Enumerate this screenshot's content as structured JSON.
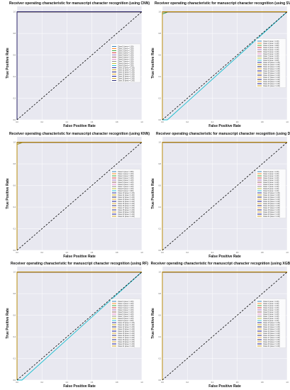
{
  "colors": {
    "plot_background": "#e8e8f0",
    "grid": "#ffffff",
    "diagonal": "#000000",
    "palette": [
      "#1f77b4",
      "#ff7f0e",
      "#2ca02c",
      "#d62728",
      "#9467bd",
      "#8c564b",
      "#e377c2",
      "#7f7f7f",
      "#bcbd22",
      "#17becf",
      "#1a1a8c",
      "#c8a000",
      "#0d0d66",
      "#e6a817",
      "#000080",
      "#daa520",
      "#191970",
      "#f0b030",
      "#101078",
      "#d4a020",
      "#00008b",
      "#cc9900"
    ]
  },
  "chart_data": [
    {
      "type": "line",
      "title": "Receiver operating characteristic for manuscript character recognition (using CNN)",
      "xlabel": "False Positive Rate",
      "ylabel": "True Positive Rate",
      "xlim": [
        0.0,
        1.0
      ],
      "ylim": [
        0.0,
        1.05
      ],
      "xticks": [
        "0.0",
        "0.2",
        "0.4",
        "0.6",
        "0.8",
        "1.0"
      ],
      "yticks": [
        "0.0",
        "0.2",
        "0.4",
        "0.6",
        "0.8",
        "1.0"
      ],
      "grid": true,
      "legend": "center-right",
      "diagonal": {
        "x": [
          0,
          1
        ],
        "y": [
          0,
          1
        ],
        "style": "dashed"
      },
      "series": [
        {
          "name": "Class 0 (area = 1.00)",
          "auc": 1.0
        },
        {
          "name": "Class 1 (area = 1.00)",
          "auc": 1.0
        },
        {
          "name": "Class 2 (area = 1.00)",
          "auc": 1.0
        },
        {
          "name": "Class 3 (area = 1.00)",
          "auc": 1.0
        },
        {
          "name": "Class 4 (area = 1.00)",
          "auc": 1.0
        },
        {
          "name": "Class 5 (area = 1.00)",
          "auc": 1.0
        },
        {
          "name": "Class 6 (area = 1.00)",
          "auc": 1.0
        },
        {
          "name": "Class 7 (area = 1.00)",
          "auc": 1.0
        },
        {
          "name": "Class 8 (area = 1.00)",
          "auc": 1.0
        },
        {
          "name": "Class 9 (area = 1.00)",
          "auc": 1.0
        },
        {
          "name": "Class 10 (area = 1.00)",
          "auc": 1.0
        },
        {
          "name": "Class 11 (area = 1.00)",
          "auc": 1.0
        },
        {
          "name": "Class 12 (area = 1.00)",
          "auc": 1.0
        },
        {
          "name": "Class 13 (area = 1.00)",
          "auc": 1.0
        },
        {
          "name": "Class 14 (area = 1.00)",
          "auc": 1.0
        },
        {
          "name": "Class 15 (area = 1.00)",
          "auc": 1.0
        },
        {
          "name": "Class 16 (area = 1.00)",
          "auc": 1.0
        }
      ]
    },
    {
      "type": "line",
      "title": "Receiver operating characteristic for manuscript character recognition (using SVM)",
      "xlabel": "False Positive Rate",
      "ylabel": "True Positive Rate",
      "xlim": [
        0.0,
        1.0
      ],
      "ylim": [
        0.0,
        1.05
      ],
      "xticks": [
        "0.0",
        "0.2",
        "0.4",
        "0.6",
        "0.8",
        "1.0"
      ],
      "yticks": [
        "0.0",
        "0.2",
        "0.4",
        "0.6",
        "0.8",
        "1.0"
      ],
      "grid": true,
      "legend": "center-right",
      "diagonal": {
        "x": [
          0,
          1
        ],
        "y": [
          0,
          1
        ],
        "style": "dashed"
      },
      "series": [
        {
          "name": "Class 0 (area = 1.00)",
          "auc": 1.0
        },
        {
          "name": "Class 1 (area = 1.00)",
          "auc": 1.0
        },
        {
          "name": "Class 2 (area = 0.99)",
          "auc": 0.99
        },
        {
          "name": "Class 3 (area = 1.00)",
          "auc": 1.0
        },
        {
          "name": "Class 4 (area = 1.00)",
          "auc": 1.0
        },
        {
          "name": "Class 5 (area = 1.00)",
          "auc": 1.0
        },
        {
          "name": "Class 6 (area = 1.00)",
          "auc": 1.0
        },
        {
          "name": "Class 7 (area = 1.00)",
          "auc": 1.0
        },
        {
          "name": "Class 8 (area = 1.00)",
          "auc": 1.0
        },
        {
          "name": "Class 9 (area = 0.48)",
          "auc": 0.48
        },
        {
          "name": "Class 10 (area = 1.00)",
          "auc": 1.0
        },
        {
          "name": "Class 11 (area = 1.00)",
          "auc": 1.0
        },
        {
          "name": "Class 12 (area = 1.00)",
          "auc": 1.0
        },
        {
          "name": "Class 13 (area = 1.00)",
          "auc": 1.0
        },
        {
          "name": "Class 14 (area = 1.00)",
          "auc": 1.0
        },
        {
          "name": "Class 15 (area = 1.00)",
          "auc": 1.0
        },
        {
          "name": "Class 16 (area = 1.00)",
          "auc": 1.0
        },
        {
          "name": "Class 17 (area = 1.00)",
          "auc": 1.0
        },
        {
          "name": "Class 18 (area = 1.00)",
          "auc": 1.0
        },
        {
          "name": "Class 19 (area = 1.00)",
          "auc": 1.0
        },
        {
          "name": "Class 20 (area = 1.00)",
          "auc": 1.0
        },
        {
          "name": "Class 21 (area = 1.00)",
          "auc": 1.0
        }
      ]
    },
    {
      "type": "line",
      "title": "Receiver operating characteristic for manuscript character recognition (using KNN)",
      "xlabel": "False Positive Rate",
      "ylabel": "True Positive Rate",
      "xlim": [
        0.0,
        1.0
      ],
      "ylim": [
        0.0,
        1.05
      ],
      "xticks": [
        "0.0",
        "0.2",
        "0.4",
        "0.6",
        "0.8",
        "1.0"
      ],
      "yticks": [
        "0.0",
        "0.2",
        "0.4",
        "0.6",
        "0.8",
        "1.0"
      ],
      "grid": true,
      "legend": "center-right",
      "diagonal": {
        "x": [
          0,
          1
        ],
        "y": [
          0,
          1
        ],
        "style": "dashed"
      },
      "series": [
        {
          "name": "Class 0 (area = 0.99)",
          "auc": 0.99
        },
        {
          "name": "Class 1 (area = 1.00)",
          "auc": 1.0
        },
        {
          "name": "Class 2 (area = 0.99)",
          "auc": 0.99
        },
        {
          "name": "Class 3 (area = 1.00)",
          "auc": 1.0
        },
        {
          "name": "Class 4 (area = 1.00)",
          "auc": 1.0
        },
        {
          "name": "Class 5 (area = 1.00)",
          "auc": 1.0
        },
        {
          "name": "Class 6 (area = 1.00)",
          "auc": 1.0
        },
        {
          "name": "Class 7 (area = 1.00)",
          "auc": 1.0
        },
        {
          "name": "Class 8 (area = 1.00)",
          "auc": 1.0
        },
        {
          "name": "Class 9 (area = 0.99)",
          "auc": 0.99
        },
        {
          "name": "Class 10 (area = 1.00)",
          "auc": 1.0
        },
        {
          "name": "Class 11 (area = 1.00)",
          "auc": 1.0
        },
        {
          "name": "Class 12 (area = 1.00)",
          "auc": 1.0
        },
        {
          "name": "Class 13 (area = 1.00)",
          "auc": 1.0
        },
        {
          "name": "Class 14 (area = 1.00)",
          "auc": 1.0
        },
        {
          "name": "Class 15 (area = 1.00)",
          "auc": 1.0
        },
        {
          "name": "Class 16 (area = 1.00)",
          "auc": 1.0
        },
        {
          "name": "Class 17 (area = 1.00)",
          "auc": 1.0
        },
        {
          "name": "Class 18 (area = 1.00)",
          "auc": 1.0
        },
        {
          "name": "Class 19 (area = 0.99)",
          "auc": 0.99
        },
        {
          "name": "Class 20 (area = 1.00)",
          "auc": 1.0
        },
        {
          "name": "Class 21 (area = 1.00)",
          "auc": 1.0
        }
      ]
    },
    {
      "type": "line",
      "title": "Receiver operating characteristic for manuscript character recognition (using DT)",
      "xlabel": "False Positive Rate",
      "ylabel": "True Positive Rate",
      "xlim": [
        0.0,
        1.0
      ],
      "ylim": [
        0.0,
        1.05
      ],
      "xticks": [
        "0.0",
        "0.2",
        "0.4",
        "0.6",
        "0.8",
        "1.0"
      ],
      "yticks": [
        "0.0",
        "0.2",
        "0.4",
        "0.6",
        "0.8",
        "1.0"
      ],
      "grid": true,
      "legend": "center-right",
      "diagonal": {
        "x": [
          0,
          1
        ],
        "y": [
          0,
          1
        ],
        "style": "dashed"
      },
      "series": [
        {
          "name": "Class 0 (area = 1.00)",
          "auc": 1.0
        },
        {
          "name": "Class 1 (area = 1.00)",
          "auc": 1.0
        },
        {
          "name": "Class 2 (area = 1.00)",
          "auc": 1.0
        },
        {
          "name": "Class 3 (area = 1.00)",
          "auc": 1.0
        },
        {
          "name": "Class 4 (area = 1.00)",
          "auc": 1.0
        },
        {
          "name": "Class 5 (area = 1.00)",
          "auc": 1.0
        },
        {
          "name": "Class 6 (area = 1.00)",
          "auc": 1.0
        },
        {
          "name": "Class 7 (area = 1.00)",
          "auc": 1.0
        },
        {
          "name": "Class 8 (area = 1.00)",
          "auc": 1.0
        },
        {
          "name": "Class 9 (area = 1.00)",
          "auc": 1.0
        },
        {
          "name": "Class 10 (area = 1.00)",
          "auc": 1.0
        },
        {
          "name": "Class 11 (area = 1.00)",
          "auc": 1.0
        },
        {
          "name": "Class 12 (area = 1.00)",
          "auc": 1.0
        },
        {
          "name": "Class 13 (area = 1.00)",
          "auc": 1.0
        },
        {
          "name": "Class 14 (area = 1.00)",
          "auc": 1.0
        },
        {
          "name": "Class 15 (area = 1.00)",
          "auc": 1.0
        },
        {
          "name": "Class 16 (area = 1.00)",
          "auc": 1.0
        },
        {
          "name": "Class 17 (area = 1.00)",
          "auc": 1.0
        },
        {
          "name": "Class 18 (area = 1.00)",
          "auc": 1.0
        },
        {
          "name": "Class 19 (area = 1.00)",
          "auc": 1.0
        },
        {
          "name": "Class 20 (area = 1.00)",
          "auc": 1.0
        },
        {
          "name": "Class 21 (area = 1.00)",
          "auc": 1.0
        }
      ]
    },
    {
      "type": "line",
      "title": "Receiver operating characteristic for manuscript character recognition (using RF)",
      "xlabel": "False Positive Rate",
      "ylabel": "True Positive Rate",
      "xlim": [
        0.0,
        1.0
      ],
      "ylim": [
        0.0,
        1.05
      ],
      "xticks": [
        "0.0",
        "0.2",
        "0.4",
        "0.6",
        "0.8",
        "1.0"
      ],
      "yticks": [
        "0.0",
        "0.2",
        "0.4",
        "0.6",
        "0.8",
        "1.0"
      ],
      "grid": true,
      "legend": "center-right",
      "diagonal": {
        "x": [
          0,
          1
        ],
        "y": [
          0,
          1
        ],
        "style": "dashed"
      },
      "series": [
        {
          "name": "Class 0 (area = 1.00)",
          "auc": 1.0
        },
        {
          "name": "Class 1 (area = 1.00)",
          "auc": 1.0
        },
        {
          "name": "Class 2 (area = 1.00)",
          "auc": 1.0
        },
        {
          "name": "Class 3 (area = 1.00)",
          "auc": 1.0
        },
        {
          "name": "Class 4 (area = 1.00)",
          "auc": 1.0
        },
        {
          "name": "Class 5 (area = 1.00)",
          "auc": 1.0
        },
        {
          "name": "Class 6 (area = 1.00)",
          "auc": 1.0
        },
        {
          "name": "Class 7 (area = 1.00)",
          "auc": 1.0
        },
        {
          "name": "Class 8 (area = 1.00)",
          "auc": 1.0
        },
        {
          "name": "Class 9 (area = 0.48)",
          "auc": 0.48
        },
        {
          "name": "Class 10 (area = 1.00)",
          "auc": 1.0
        },
        {
          "name": "Class 11 (area = 1.00)",
          "auc": 1.0
        },
        {
          "name": "Class 12 (area = 1.00)",
          "auc": 1.0
        },
        {
          "name": "Class 13 (area = 1.00)",
          "auc": 1.0
        },
        {
          "name": "Class 14 (area = 1.00)",
          "auc": 1.0
        },
        {
          "name": "Class 15 (area = 1.00)",
          "auc": 1.0
        },
        {
          "name": "Class 16 (area = 1.00)",
          "auc": 1.0
        },
        {
          "name": "Class 17 (area = 1.00)",
          "auc": 1.0
        },
        {
          "name": "Class 18 (area = 1.00)",
          "auc": 1.0
        },
        {
          "name": "Class 19 (area = 1.00)",
          "auc": 1.0
        },
        {
          "name": "Class 20 (area = 1.00)",
          "auc": 1.0
        },
        {
          "name": "Class 21 (area = 1.00)",
          "auc": 1.0
        }
      ]
    },
    {
      "type": "line",
      "title": "Receiver operating characteristic for manuscript character recognition (using XGBoost)",
      "xlabel": "False Positive Rate",
      "ylabel": "True Positive Rate",
      "xlim": [
        0.0,
        1.0
      ],
      "ylim": [
        0.0,
        1.05
      ],
      "xticks": [
        "0.0",
        "0.2",
        "0.4",
        "0.6",
        "0.8",
        "1.0"
      ],
      "yticks": [
        "0.0",
        "0.2",
        "0.4",
        "0.6",
        "0.8",
        "1.0"
      ],
      "grid": true,
      "legend": "center-right",
      "diagonal": {
        "x": [
          0,
          1
        ],
        "y": [
          0,
          1
        ],
        "style": "dashed"
      },
      "series": [
        {
          "name": "Class 0 (area = 1.00)",
          "auc": 1.0
        },
        {
          "name": "Class 1 (area = 1.00)",
          "auc": 1.0
        },
        {
          "name": "Class 2 (area = 1.00)",
          "auc": 1.0
        },
        {
          "name": "Class 3 (area = 1.00)",
          "auc": 1.0
        },
        {
          "name": "Class 4 (area = 1.00)",
          "auc": 1.0
        },
        {
          "name": "Class 5 (area = 1.00)",
          "auc": 1.0
        },
        {
          "name": "Class 6 (area = 1.00)",
          "auc": 1.0
        },
        {
          "name": "Class 7 (area = 1.00)",
          "auc": 1.0
        },
        {
          "name": "Class 8 (area = 1.00)",
          "auc": 1.0
        },
        {
          "name": "Class 9 (area = 1.00)",
          "auc": 1.0
        },
        {
          "name": "Class 10 (area = 1.00)",
          "auc": 1.0
        },
        {
          "name": "Class 11 (area = 1.00)",
          "auc": 1.0
        },
        {
          "name": "Class 12 (area = 1.00)",
          "auc": 1.0
        },
        {
          "name": "Class 13 (area = 1.00)",
          "auc": 1.0
        },
        {
          "name": "Class 14 (area = 1.00)",
          "auc": 1.0
        },
        {
          "name": "Class 15 (area = 1.00)",
          "auc": 1.0
        },
        {
          "name": "Class 16 (area = 1.00)",
          "auc": 1.0
        },
        {
          "name": "Class 17 (area = 1.00)",
          "auc": 1.0
        },
        {
          "name": "Class 18 (area = 1.00)",
          "auc": 1.0
        },
        {
          "name": "Class 19 (area = 1.00)",
          "auc": 1.0
        },
        {
          "name": "Class 20 (area = 1.00)",
          "auc": 1.0
        },
        {
          "name": "Class 21 (area = 1.00)",
          "auc": 1.0
        }
      ]
    }
  ]
}
